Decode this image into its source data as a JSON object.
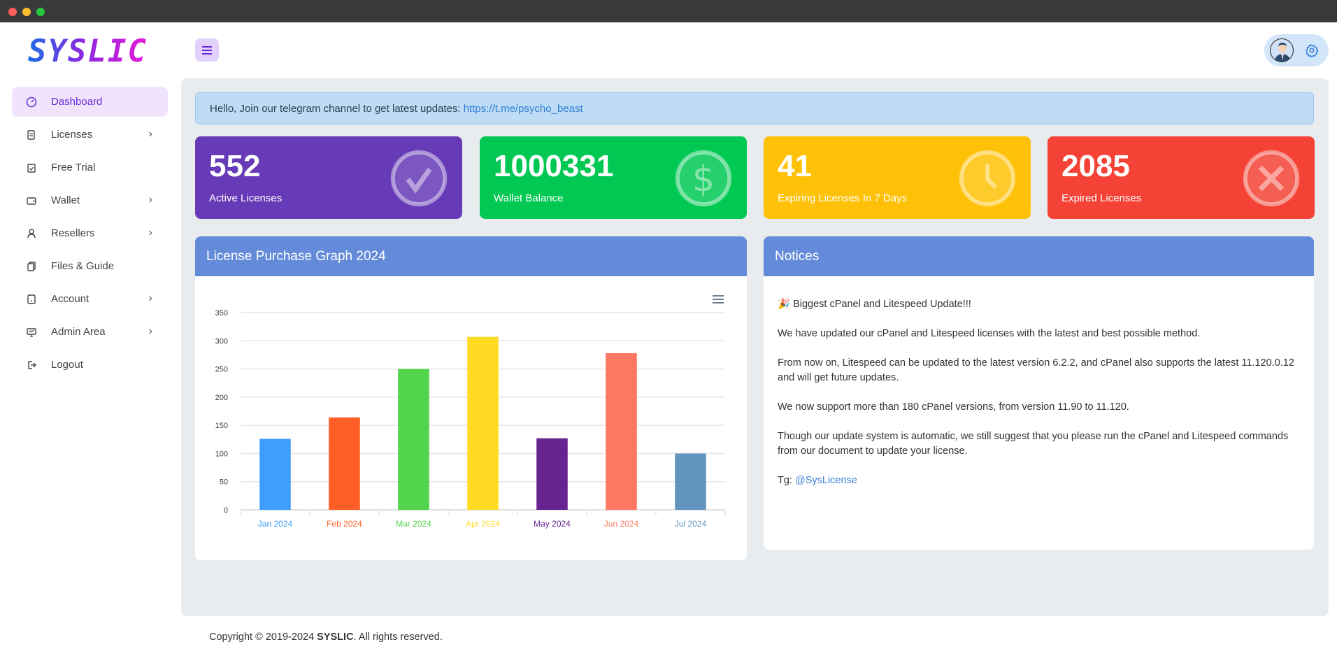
{
  "window": {
    "controls": [
      "close",
      "minimize",
      "maximize"
    ]
  },
  "brand": {
    "logo": "SYSLIC"
  },
  "header": {
    "menu_icon": "hamburger-icon",
    "avatar_icon": "user-avatar",
    "settings_icon": "gear-icon"
  },
  "sidebar": {
    "items": [
      {
        "label": "Dashboard",
        "icon": "gauge-icon",
        "active": true,
        "has_submenu": false
      },
      {
        "label": "Licenses",
        "icon": "scroll-icon",
        "has_submenu": true
      },
      {
        "label": "Free Trial",
        "icon": "clipboard-check-icon",
        "has_submenu": false
      },
      {
        "label": "Wallet",
        "icon": "wallet-icon",
        "has_submenu": true
      },
      {
        "label": "Resellers",
        "icon": "user-icon",
        "has_submenu": true
      },
      {
        "label": "Files & Guide",
        "icon": "files-icon",
        "has_submenu": false
      },
      {
        "label": "Account",
        "icon": "account-icon",
        "has_submenu": true
      },
      {
        "label": "Admin Area",
        "icon": "monitor-icon",
        "has_submenu": true
      },
      {
        "label": "Logout",
        "icon": "logout-icon",
        "has_submenu": false
      }
    ]
  },
  "alert": {
    "text": "Hello, Join our telegram channel to get latest updates: ",
    "link": "https://t.me/psycho_beast"
  },
  "stats": [
    {
      "value": "552",
      "label": "Active Licenses",
      "color": "#673ab7",
      "icon": "check-circle-icon"
    },
    {
      "value": "1000331",
      "label": "Wallet Balance",
      "color": "#00c853",
      "icon": "dollar-circle-icon"
    },
    {
      "value": "41",
      "label": "Expiring Licenses In 7 Days",
      "color": "#ffc107",
      "icon": "clock-icon"
    },
    {
      "value": "2085",
      "label": "Expired Licenses",
      "color": "#f44336",
      "icon": "x-circle-icon"
    }
  ],
  "chart_card": {
    "title": "License Purchase Graph 2024",
    "menu_icon": "hamburger-icon"
  },
  "chart_data": {
    "type": "bar",
    "categories": [
      "Jan 2024",
      "Feb 2024",
      "Mar 2024",
      "Apr 2024",
      "May 2024",
      "Jun 2024",
      "Jul 2024"
    ],
    "values": [
      126,
      164,
      250,
      307,
      127,
      278,
      100
    ],
    "colors": [
      "#3f9efd",
      "#ff5f26",
      "#52d34c",
      "#ffdb24",
      "#662490",
      "#ff7864",
      "#6194bf"
    ],
    "yticks": [
      0,
      50,
      100,
      150,
      200,
      250,
      300,
      350
    ],
    "ylim": [
      0,
      350
    ],
    "grid": true,
    "title": "",
    "xlabel": "",
    "ylabel": ""
  },
  "notices": {
    "title": "Notices",
    "headline": "🎉 Biggest cPanel and Litespeed Update!!!",
    "paragraphs": [
      "We have updated our cPanel and Litespeed licenses with the latest and best possible method.",
      "From now on, Litespeed can be updated to the latest version 6.2.2, and cPanel also supports the latest 11.120.0.12 and will get future updates.",
      "We now support more than 180 cPanel versions, from version 11.90 to 11.120.",
      "Though our update system is automatic, we still suggest that you please run the cPanel and Litespeed commands from our document to update your license."
    ],
    "tg_label": "Tg: ",
    "tg_link": "@SysLicense"
  },
  "footer": {
    "prefix": "Copyright © 2019-2024 ",
    "brand": "SYSLIC",
    "suffix": ". All rights reserved."
  }
}
